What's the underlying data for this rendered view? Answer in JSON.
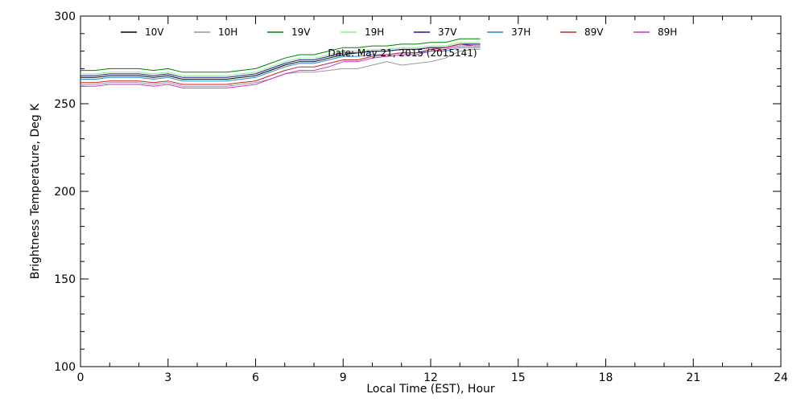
{
  "chart_data": {
    "type": "line",
    "title": "",
    "annotation": "Date: May 21, 2015 (2015141)",
    "xlabel": "Local Time (EST), Hour",
    "ylabel": "Brightness Temperature, Deg K",
    "xlim": [
      0,
      24
    ],
    "ylim": [
      100,
      300
    ],
    "xticks": [
      0,
      3,
      6,
      9,
      12,
      15,
      18,
      21,
      24
    ],
    "yticks": [
      100,
      150,
      200,
      250,
      300
    ],
    "x_minor_step": 1,
    "y_minor_step": 10,
    "grid": false,
    "legend_placement": "top, horizontal",
    "x": [
      0,
      0.5,
      1,
      1.5,
      2,
      2.5,
      3,
      3.5,
      4,
      4.5,
      5,
      5.5,
      6,
      6.5,
      7,
      7.5,
      8,
      8.5,
      9,
      9.5,
      10,
      10.5,
      11,
      11.5,
      12,
      12.5,
      13,
      13.5,
      13.7
    ],
    "series": [
      {
        "name": "10V",
        "color": "#000000",
        "values": [
          265,
          265,
          266,
          266,
          266,
          265,
          266,
          264,
          264,
          264,
          264,
          265,
          266,
          269,
          272,
          274,
          274,
          276,
          278,
          279,
          280,
          280,
          281,
          281,
          282,
          282,
          284,
          284,
          284
        ]
      },
      {
        "name": "10H",
        "color": "#999999",
        "values": [
          261,
          261,
          262,
          262,
          262,
          261,
          262,
          260,
          260,
          260,
          260,
          261,
          262,
          264,
          267,
          268,
          268,
          269,
          270,
          270,
          272,
          274,
          272,
          273,
          274,
          276,
          280,
          281,
          281
        ]
      },
      {
        "name": "19V",
        "color": "#008000",
        "values": [
          269,
          269,
          270,
          270,
          270,
          269,
          270,
          268,
          268,
          268,
          268,
          269,
          270,
          273,
          276,
          278,
          278,
          280,
          282,
          282,
          283,
          283,
          284,
          284,
          285,
          285,
          287,
          287,
          287
        ]
      },
      {
        "name": "19H",
        "color": "#88ee88",
        "values": [
          267,
          267,
          268,
          268,
          268,
          267,
          268,
          266,
          266,
          266,
          266,
          267,
          268,
          271,
          274,
          276,
          276,
          278,
          280,
          280,
          281,
          281,
          282,
          282,
          283,
          283,
          285,
          285,
          285
        ]
      },
      {
        "name": "37V",
        "color": "#1a1a99",
        "values": [
          266,
          266,
          267,
          267,
          267,
          266,
          267,
          265,
          265,
          265,
          265,
          266,
          267,
          270,
          273,
          275,
          275,
          277,
          279,
          279,
          280,
          280,
          281,
          281,
          282,
          282,
          284,
          284,
          284
        ]
      },
      {
        "name": "37H",
        "color": "#2288cc",
        "values": [
          264,
          264,
          265,
          265,
          265,
          264,
          265,
          263,
          263,
          263,
          263,
          264,
          265,
          268,
          271,
          273,
          273,
          275,
          277,
          277,
          278,
          278,
          279,
          279,
          280,
          280,
          282,
          282,
          282
        ]
      },
      {
        "name": "89V",
        "color": "#cc2222",
        "values": [
          262,
          262,
          263,
          263,
          263,
          262,
          263,
          261,
          261,
          261,
          261,
          262,
          263,
          266,
          269,
          271,
          271,
          273,
          275,
          275,
          277,
          278,
          279,
          279,
          281,
          282,
          284,
          283,
          283
        ]
      },
      {
        "name": "89H",
        "color": "#cc33cc",
        "values": [
          260,
          260,
          261,
          261,
          261,
          260,
          261,
          259,
          259,
          259,
          259,
          260,
          261,
          264,
          267,
          269,
          269,
          271,
          274,
          274,
          276,
          277,
          278,
          278,
          280,
          281,
          283,
          283,
          283
        ]
      }
    ]
  }
}
